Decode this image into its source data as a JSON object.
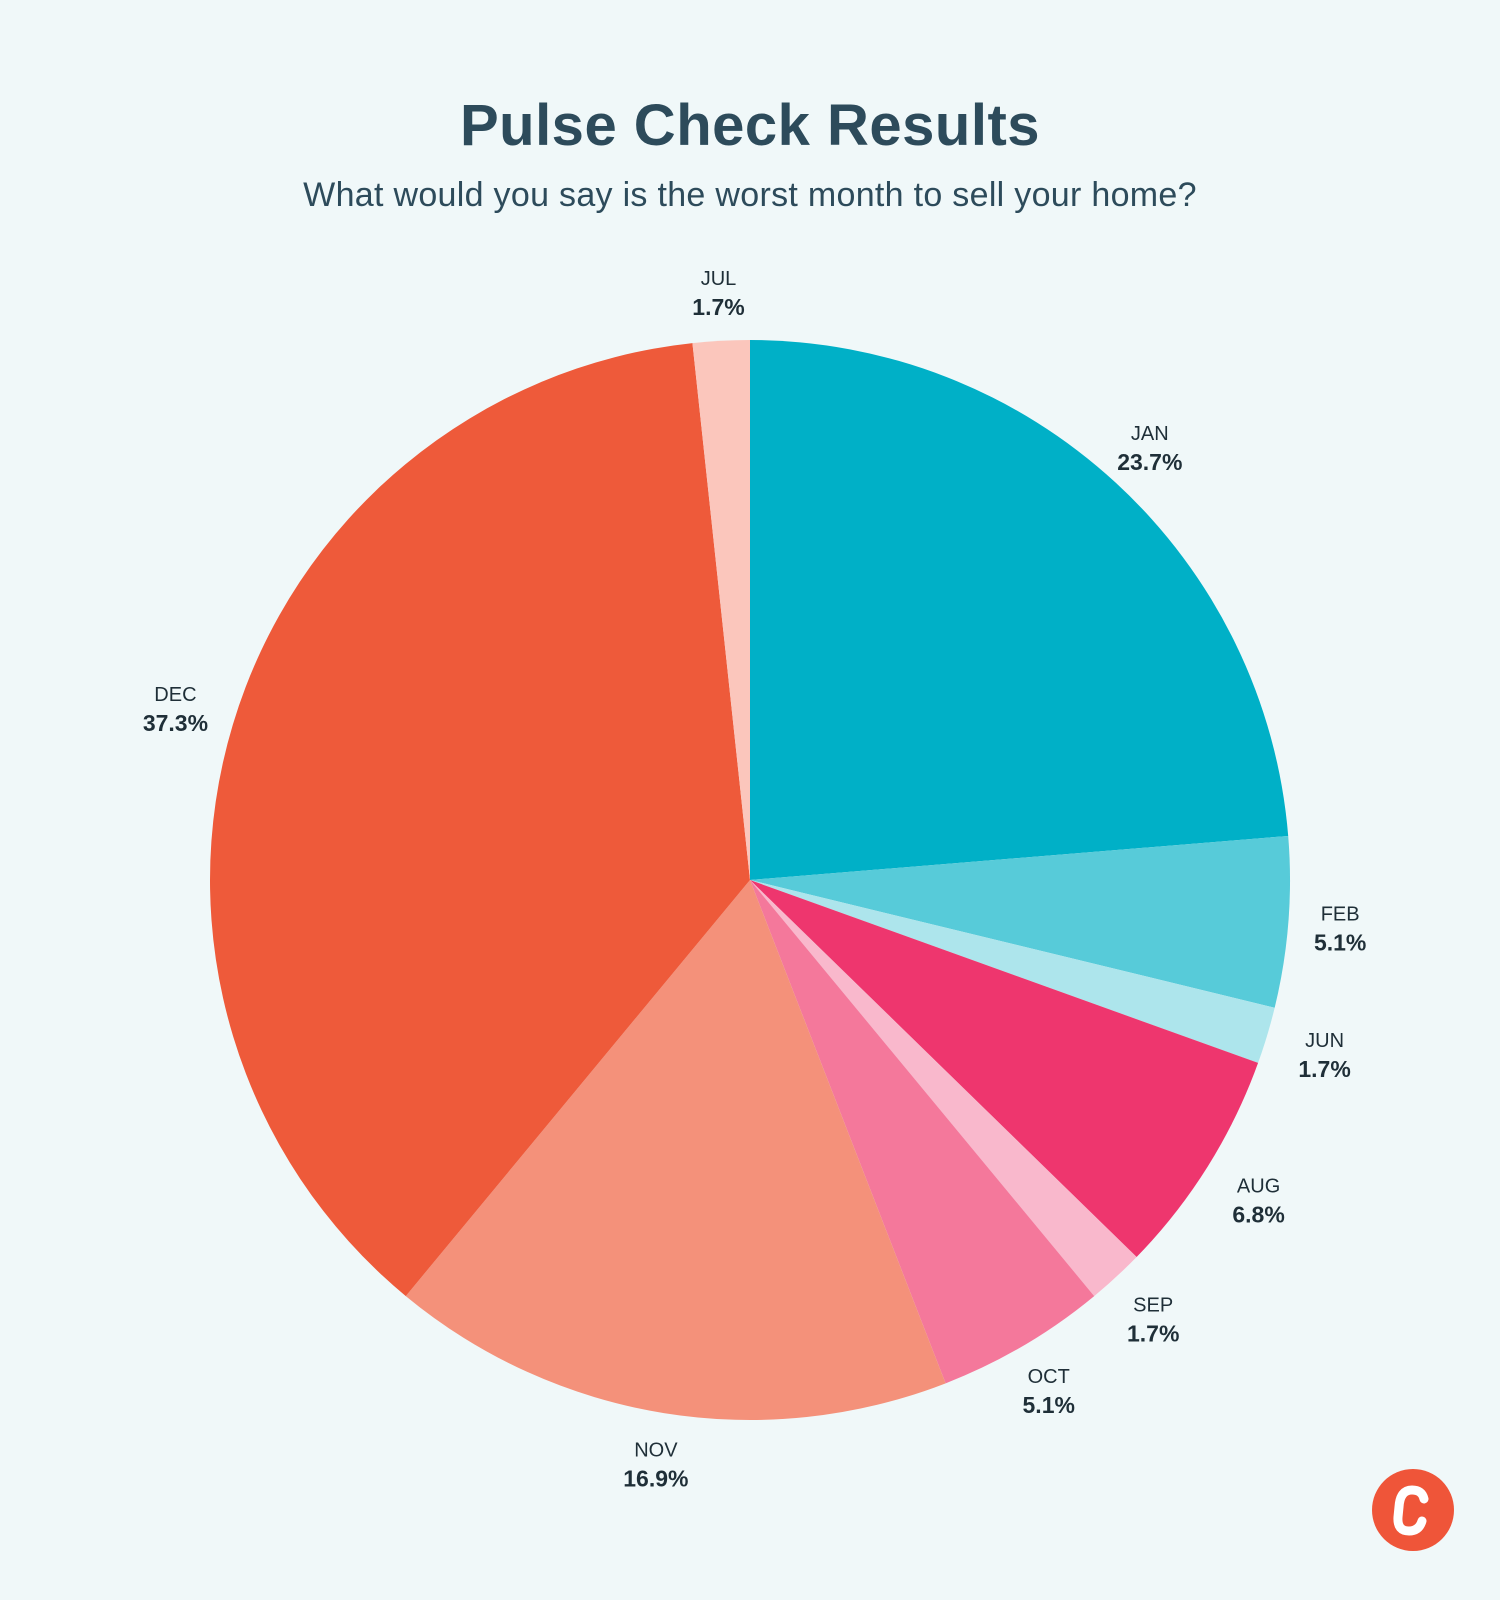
{
  "header": {
    "title": "Pulse Check Results",
    "subtitle": "What would you say is the worst month to sell your home?"
  },
  "chart_data": {
    "type": "pie",
    "title": "Pulse Check Results",
    "subtitle": "What would you say is the worst month to sell your home?",
    "start_angle_deg": 0,
    "direction": "clockwise",
    "slices": [
      {
        "label": "JAN",
        "value": 23.7,
        "display": "23.7%",
        "color": "#00b0c7"
      },
      {
        "label": "FEB",
        "value": 5.1,
        "display": "5.1%",
        "color": "#57cbd9"
      },
      {
        "label": "JUN",
        "value": 1.7,
        "display": "1.7%",
        "color": "#ade5ec"
      },
      {
        "label": "AUG",
        "value": 6.8,
        "display": "6.8%",
        "color": "#ee366e"
      },
      {
        "label": "SEP",
        "value": 1.7,
        "display": "1.7%",
        "color": "#f9b8cc"
      },
      {
        "label": "OCT",
        "value": 5.1,
        "display": "5.1%",
        "color": "#f4789b"
      },
      {
        "label": "NOV",
        "value": 16.9,
        "display": "16.9%",
        "color": "#f4917a"
      },
      {
        "label": "DEC",
        "value": 37.3,
        "display": "37.3%",
        "color": "#ee5a3a"
      },
      {
        "label": "JUL",
        "value": 1.7,
        "display": "1.7%",
        "color": "#fbc6bc"
      }
    ]
  },
  "logo": {
    "glyph": "C",
    "color": "#ef5539"
  }
}
